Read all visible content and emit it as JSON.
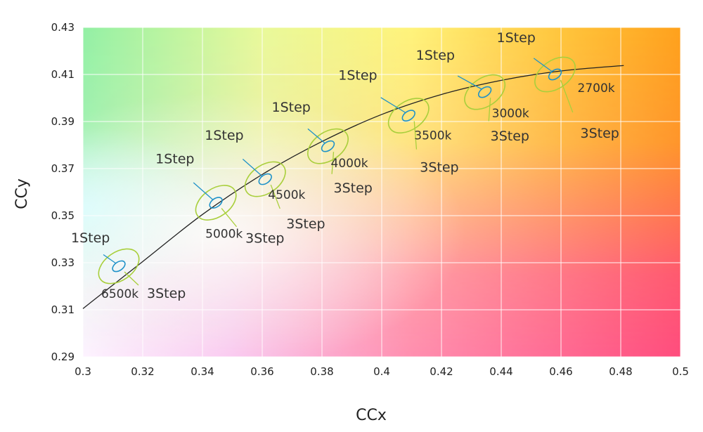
{
  "chart_data": {
    "type": "line",
    "xlabel": "CCx",
    "ylabel": "CCy",
    "xlim": [
      0.3,
      0.5
    ],
    "ylim": [
      0.29,
      0.43
    ],
    "x_ticks": [
      0.3,
      0.32,
      0.34,
      0.36,
      0.38,
      0.4,
      0.42,
      0.44,
      0.46,
      0.48,
      0.5
    ],
    "x_tick_labels": [
      "0.3",
      "0.32",
      "0.34",
      "0.36",
      "0.38",
      "0.4",
      "0.42",
      "0.44",
      "0.46",
      "0.48",
      "0.5"
    ],
    "y_ticks": [
      0.29,
      0.31,
      0.33,
      0.35,
      0.37,
      0.39,
      0.41,
      0.43
    ],
    "y_tick_labels": [
      "0.29",
      "0.31",
      "0.33",
      "0.35",
      "0.37",
      "0.39",
      "0.41",
      "0.43"
    ],
    "grid": true,
    "background": "color gradient (green top-left, yellow/orange top-right, white bottom-left, pink/red bottom-right)",
    "curve": {
      "x": [
        0.3,
        0.32,
        0.34,
        0.36,
        0.38,
        0.4,
        0.42,
        0.44,
        0.46,
        0.481
      ],
      "y": [
        0.3105,
        0.3305,
        0.3505,
        0.3675,
        0.3815,
        0.393,
        0.4015,
        0.4075,
        0.4115,
        0.4138
      ]
    },
    "ellipse_colors": {
      "one_step": "#1f92c9",
      "three_step": "#a9cf3c"
    },
    "points": [
      {
        "cct": "6500k",
        "x": 0.312,
        "y": 0.3285,
        "one_step_label": "1Step",
        "three_step_label": "3Step"
      },
      {
        "cct": "5000k",
        "x": 0.3445,
        "y": 0.3555,
        "one_step_label": "1Step",
        "three_step_label": "3Step"
      },
      {
        "cct": "4500k",
        "x": 0.361,
        "y": 0.3655,
        "one_step_label": "1Step",
        "three_step_label": "3Step"
      },
      {
        "cct": "4000k",
        "x": 0.382,
        "y": 0.3795,
        "one_step_label": "1Step",
        "three_step_label": "3Step"
      },
      {
        "cct": "3500k",
        "x": 0.409,
        "y": 0.3925,
        "one_step_label": "1Step",
        "three_step_label": "3Step"
      },
      {
        "cct": "3000k",
        "x": 0.4345,
        "y": 0.4025,
        "one_step_label": "1Step",
        "three_step_label": "3Step"
      },
      {
        "cct": "2700k",
        "x": 0.458,
        "y": 0.41,
        "one_step_label": "1Step",
        "three_step_label": "3Step"
      }
    ]
  }
}
